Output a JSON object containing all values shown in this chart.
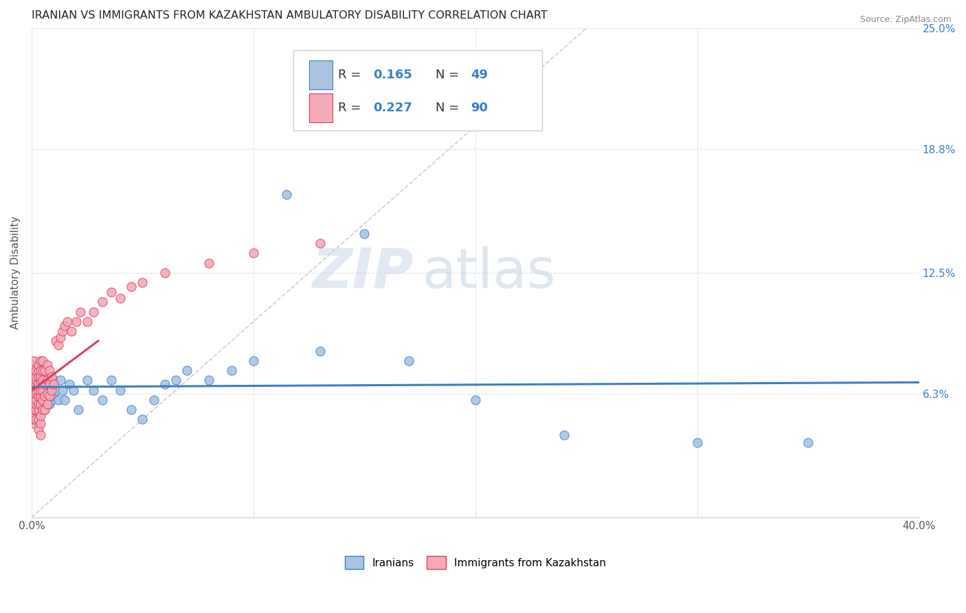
{
  "title": "IRANIAN VS IMMIGRANTS FROM KAZAKHSTAN AMBULATORY DISABILITY CORRELATION CHART",
  "source": "Source: ZipAtlas.com",
  "ylabel": "Ambulatory Disability",
  "xlim": [
    0.0,
    0.4
  ],
  "ylim": [
    0.0,
    0.25
  ],
  "ytick_vals": [
    0.063,
    0.125,
    0.188,
    0.25
  ],
  "ytick_labels": [
    "6.3%",
    "12.5%",
    "18.8%",
    "25.0%"
  ],
  "r_iranian": 0.165,
  "n_iranian": 49,
  "r_kazakhstan": 0.227,
  "n_kazakhstan": 90,
  "color_iranian": "#aac4e2",
  "color_kazakhstan": "#f5aab8",
  "trend_color_iranian": "#3a7ec8",
  "trend_color_kazakhstan": "#d94060",
  "diagonal_color": "#cccccc",
  "watermark_zip": "ZIP",
  "watermark_atlas": "atlas",
  "legend_labels": [
    "Iranians",
    "Immigrants from Kazakhstan"
  ],
  "iranians_x": [
    0.001,
    0.002,
    0.002,
    0.003,
    0.003,
    0.004,
    0.004,
    0.005,
    0.005,
    0.006,
    0.006,
    0.007,
    0.007,
    0.008,
    0.008,
    0.009,
    0.009,
    0.01,
    0.01,
    0.011,
    0.012,
    0.013,
    0.014,
    0.015,
    0.017,
    0.019,
    0.021,
    0.025,
    0.028,
    0.032,
    0.036,
    0.04,
    0.045,
    0.05,
    0.055,
    0.06,
    0.065,
    0.07,
    0.08,
    0.09,
    0.1,
    0.115,
    0.13,
    0.15,
    0.17,
    0.2,
    0.24,
    0.3,
    0.35
  ],
  "iranians_y": [
    0.06,
    0.05,
    0.065,
    0.055,
    0.07,
    0.06,
    0.065,
    0.058,
    0.068,
    0.055,
    0.062,
    0.063,
    0.07,
    0.058,
    0.065,
    0.06,
    0.068,
    0.062,
    0.07,
    0.065,
    0.06,
    0.07,
    0.065,
    0.06,
    0.068,
    0.065,
    0.055,
    0.07,
    0.065,
    0.06,
    0.07,
    0.065,
    0.055,
    0.05,
    0.06,
    0.068,
    0.07,
    0.075,
    0.07,
    0.075,
    0.08,
    0.165,
    0.085,
    0.145,
    0.08,
    0.06,
    0.042,
    0.038,
    0.038
  ],
  "kazakhstan_x": [
    0.001,
    0.001,
    0.001,
    0.001,
    0.001,
    0.001,
    0.001,
    0.001,
    0.001,
    0.001,
    0.001,
    0.001,
    0.001,
    0.001,
    0.001,
    0.001,
    0.001,
    0.001,
    0.001,
    0.001,
    0.002,
    0.002,
    0.002,
    0.002,
    0.002,
    0.002,
    0.002,
    0.002,
    0.002,
    0.002,
    0.003,
    0.003,
    0.003,
    0.003,
    0.003,
    0.003,
    0.003,
    0.003,
    0.003,
    0.003,
    0.004,
    0.004,
    0.004,
    0.004,
    0.004,
    0.004,
    0.004,
    0.004,
    0.004,
    0.004,
    0.005,
    0.005,
    0.005,
    0.005,
    0.005,
    0.005,
    0.006,
    0.006,
    0.006,
    0.006,
    0.007,
    0.007,
    0.007,
    0.007,
    0.008,
    0.008,
    0.008,
    0.009,
    0.009,
    0.01,
    0.011,
    0.012,
    0.013,
    0.014,
    0.015,
    0.016,
    0.018,
    0.02,
    0.022,
    0.025,
    0.028,
    0.032,
    0.036,
    0.04,
    0.045,
    0.05,
    0.06,
    0.08,
    0.1,
    0.13
  ],
  "kazakhstan_y": [
    0.048,
    0.05,
    0.052,
    0.055,
    0.055,
    0.058,
    0.06,
    0.06,
    0.062,
    0.063,
    0.065,
    0.065,
    0.065,
    0.068,
    0.07,
    0.072,
    0.075,
    0.075,
    0.078,
    0.08,
    0.05,
    0.055,
    0.058,
    0.06,
    0.063,
    0.065,
    0.068,
    0.07,
    0.072,
    0.075,
    0.045,
    0.05,
    0.055,
    0.058,
    0.062,
    0.065,
    0.068,
    0.072,
    0.075,
    0.078,
    0.042,
    0.048,
    0.052,
    0.058,
    0.062,
    0.065,
    0.07,
    0.072,
    0.075,
    0.08,
    0.055,
    0.06,
    0.065,
    0.07,
    0.075,
    0.08,
    0.055,
    0.062,
    0.068,
    0.075,
    0.058,
    0.063,
    0.07,
    0.078,
    0.062,
    0.068,
    0.075,
    0.065,
    0.072,
    0.068,
    0.09,
    0.088,
    0.092,
    0.095,
    0.098,
    0.1,
    0.095,
    0.1,
    0.105,
    0.1,
    0.105,
    0.11,
    0.115,
    0.112,
    0.118,
    0.12,
    0.125,
    0.13,
    0.135,
    0.14
  ]
}
